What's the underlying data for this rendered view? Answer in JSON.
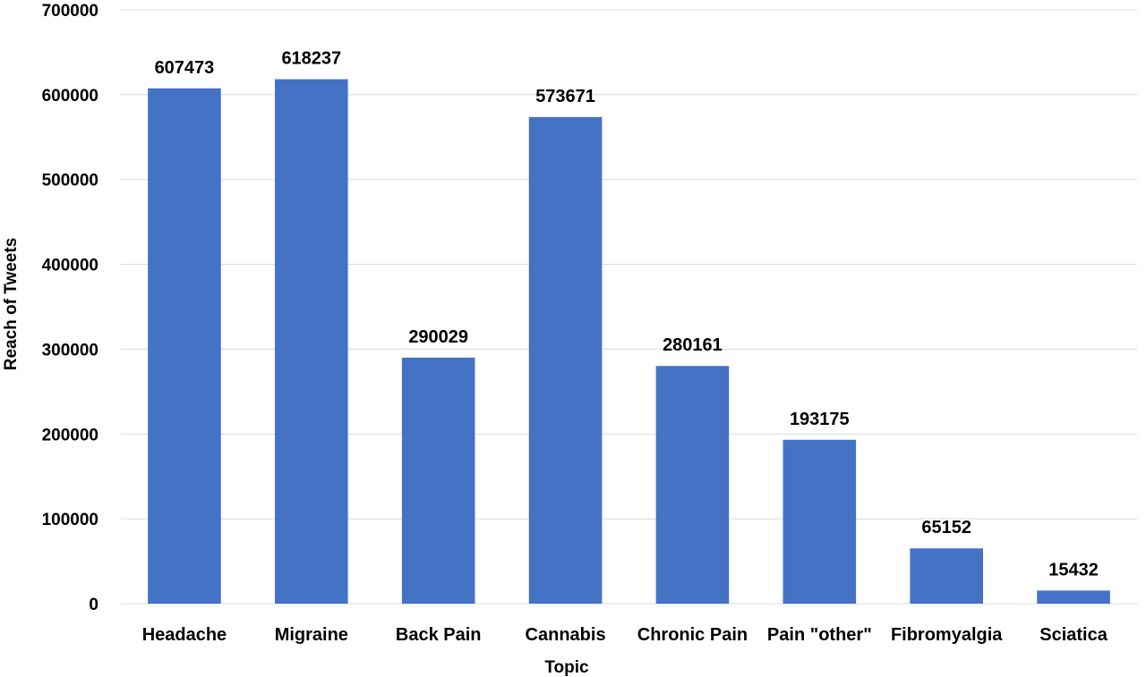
{
  "chart_data": {
    "type": "bar",
    "title": "",
    "xlabel": "Topic",
    "ylabel": "Reach of Tweets",
    "ylim": [
      0,
      700000
    ],
    "yticks": [
      "0",
      "100000",
      "200000",
      "300000",
      "400000",
      "500000",
      "600000",
      "700000"
    ],
    "grid": true,
    "bar_color": "#4472c4",
    "categories": [
      "Headache",
      "Migraine",
      "Back Pain",
      "Cannabis",
      "Chronic Pain",
      "Pain \"other\"",
      "Fibromyalgia",
      "Sciatica"
    ],
    "values": [
      607473,
      618237,
      290029,
      573671,
      280161,
      193175,
      65152,
      15432
    ],
    "data_labels": [
      "607473",
      "618237",
      "290029",
      "573671",
      "280161",
      "193175",
      "65152",
      "15432"
    ]
  }
}
